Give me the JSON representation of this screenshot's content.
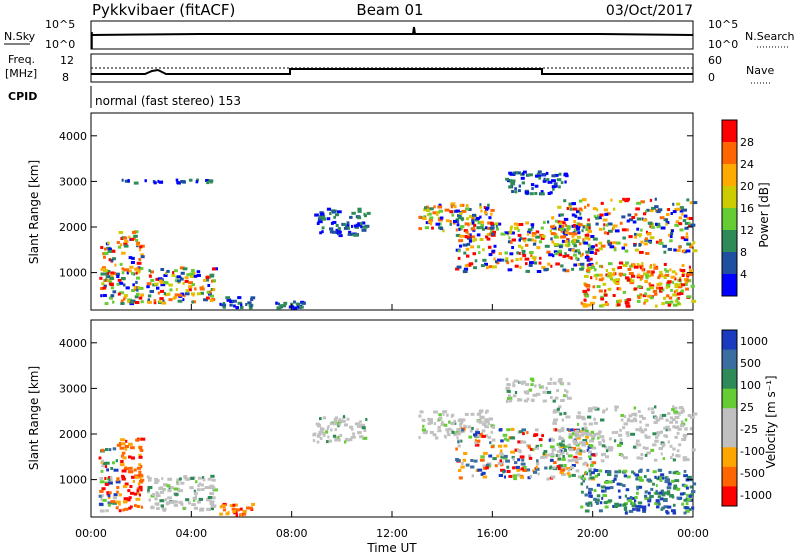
{
  "header": {
    "title": "Pykkvibaer (fitACF)",
    "beam": "Beam 01",
    "date": "03/Oct/2017"
  },
  "panels": {
    "nsky_label": "N.Sky",
    "nsky_ticks": [
      "10^5",
      "10^0"
    ],
    "nsearch_label": "N.Search",
    "nsearch_ticks": [
      "10^5",
      "10^0"
    ],
    "freq_label_1": "Freq.",
    "freq_label_2": "[MHz]",
    "freq_ticks": [
      "12",
      "8"
    ],
    "nave_label": "Nave",
    "nave_ticks": [
      "60",
      "0"
    ],
    "cpid_label": "CPID",
    "cpid_text": "normal (fast stereo) 153"
  },
  "colors": {
    "power_scale": [
      "#0000ff",
      "#1f4fa0",
      "#2e8b57",
      "#66cc33",
      "#cccc00",
      "#ffaa00",
      "#ff6600",
      "#ff0000"
    ],
    "velocity_scale": [
      "#1a3bbf",
      "#3a6ea0",
      "#2e8b57",
      "#66cc33",
      "#c0c0c0",
      "#c0c0c0",
      "#ffa500",
      "#ff6600",
      "#ff0000"
    ],
    "plot_border": "#000000"
  },
  "chart_data": [
    {
      "type": "heatmap",
      "name": "power",
      "ylabel": "Slant Range [km]",
      "yticks": [
        "1000",
        "2000",
        "3000",
        "4000"
      ],
      "ylim": [
        180,
        4500
      ],
      "colorbar_label": "Power [dB]",
      "colorbar_ticks": [
        "4",
        "8",
        "12",
        "16",
        "20",
        "24",
        "28"
      ],
      "features": [
        {
          "t": [
            0.3,
            1.0
          ],
          "r": [
            300,
            1700
          ],
          "level": "mixed"
        },
        {
          "t": [
            1.0,
            2.0
          ],
          "r": [
            300,
            1900
          ],
          "level": "mixed"
        },
        {
          "t": [
            2.2,
            4.9
          ],
          "r": [
            300,
            1100
          ],
          "level": "mixed"
        },
        {
          "t": [
            5.0,
            6.4
          ],
          "r": [
            200,
            450
          ],
          "level": "low"
        },
        {
          "t": [
            7.3,
            8.5
          ],
          "r": [
            200,
            350
          ],
          "level": "low"
        },
        {
          "t": [
            1.0,
            4.8
          ],
          "r": [
            2950,
            3020
          ],
          "level": "low"
        },
        {
          "t": [
            8.8,
            11.0
          ],
          "r": [
            1800,
            2400
          ],
          "level": "low"
        },
        {
          "t": [
            13.0,
            16.0
          ],
          "r": [
            1900,
            2500
          ],
          "level": "mixed"
        },
        {
          "t": [
            14.5,
            20.0
          ],
          "r": [
            1000,
            2100
          ],
          "level": "mixed"
        },
        {
          "t": [
            16.5,
            19.0
          ],
          "r": [
            2700,
            3200
          ],
          "level": "low"
        },
        {
          "t": [
            18.3,
            24.0
          ],
          "r": [
            1400,
            2600
          ],
          "level": "mixed"
        },
        {
          "t": [
            19.5,
            24.0
          ],
          "r": [
            250,
            1200
          ],
          "level": "high"
        }
      ]
    },
    {
      "type": "heatmap",
      "name": "velocity",
      "ylabel": "Slant Range [km]",
      "yticks": [
        "1000",
        "2000",
        "3000",
        "4000"
      ],
      "ylim": [
        180,
        4500
      ],
      "xlabel": "Time UT",
      "xticks": [
        "00:00",
        "04:00",
        "08:00",
        "12:00",
        "16:00",
        "20:00",
        "00:00"
      ],
      "xlim": [
        0,
        24
      ],
      "colorbar_label": "Velocity [m s⁻¹]",
      "colorbar_ticks": [
        "1000",
        "500",
        "100",
        "25",
        "-25",
        "-100",
        "-500",
        "-1000"
      ],
      "features": [
        {
          "t": [
            0.3,
            1.0
          ],
          "r": [
            300,
            1700
          ],
          "level": "mixed"
        },
        {
          "t": [
            1.0,
            2.0
          ],
          "r": [
            300,
            1900
          ],
          "level": "negative"
        },
        {
          "t": [
            2.2,
            4.9
          ],
          "r": [
            300,
            1100
          ],
          "level": "ground"
        },
        {
          "t": [
            5.0,
            6.4
          ],
          "r": [
            200,
            450
          ],
          "level": "negative"
        },
        {
          "t": [
            8.8,
            11.0
          ],
          "r": [
            1800,
            2400
          ],
          "level": "ground"
        },
        {
          "t": [
            13.0,
            16.0
          ],
          "r": [
            1900,
            2500
          ],
          "level": "ground"
        },
        {
          "t": [
            14.5,
            20.0
          ],
          "r": [
            1000,
            2100
          ],
          "level": "mixed"
        },
        {
          "t": [
            16.5,
            19.0
          ],
          "r": [
            2700,
            3200
          ],
          "level": "ground"
        },
        {
          "t": [
            18.3,
            24.0
          ],
          "r": [
            1400,
            2600
          ],
          "level": "ground"
        },
        {
          "t": [
            19.5,
            24.0
          ],
          "r": [
            250,
            1200
          ],
          "level": "positive"
        }
      ]
    }
  ]
}
